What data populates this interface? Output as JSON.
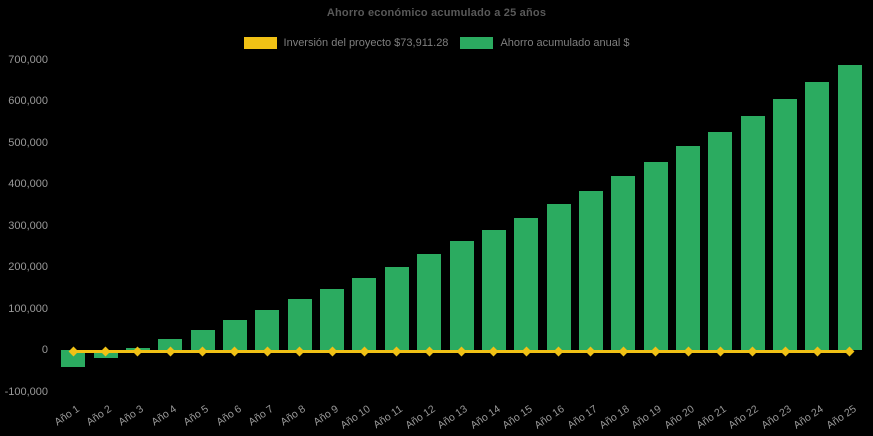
{
  "title": "Ahorro económico acumulado a 25 años",
  "legend": {
    "items": [
      {
        "id": "investment",
        "label": "Inversión del proyecto $73,911.28",
        "color": "#f0c115"
      },
      {
        "id": "savings",
        "label": "Ahorro acumulado anual $",
        "color": "#2bab60"
      }
    ]
  },
  "colors": {
    "background": "#000000",
    "title_text": "#595959",
    "legend_text": "#7f7f7f",
    "axis_text": "#999999",
    "bar": "#2bab60",
    "line": "#f0c115"
  },
  "chart_data": {
    "type": "bar",
    "title": "Ahorro económico acumulado a 25 años",
    "categories": [
      "Año 1",
      "Año 2",
      "Año 3",
      "Año 4",
      "Año 5",
      "Año 6",
      "Año 7",
      "Año 8",
      "Año 9",
      "Año 10",
      "Año 11",
      "Año 12",
      "Año 13",
      "Año 14",
      "Año 15",
      "Año 16",
      "Año 17",
      "Año 18",
      "Año 19",
      "Año 20",
      "Año 21",
      "Año 22",
      "Año 23",
      "Año 24",
      "Año 25"
    ],
    "series": [
      {
        "name": "Ahorro acumulado anual $",
        "type": "bar",
        "color": "#2bab60",
        "values": [
          -40000,
          -19000,
          6000,
          27000,
          48000,
          72000,
          96000,
          123000,
          147000,
          175000,
          201000,
          231000,
          263000,
          289000,
          319000,
          353000,
          384000,
          420000,
          454000,
          493000,
          526000,
          565000,
          606000,
          646000,
          687000
        ]
      },
      {
        "name": "Inversión del proyecto $73,911.28",
        "type": "line",
        "color": "#f0c115",
        "marker": "diamond",
        "values": [
          0,
          0,
          0,
          0,
          0,
          0,
          0,
          0,
          0,
          0,
          0,
          0,
          0,
          0,
          0,
          0,
          0,
          0,
          0,
          0,
          0,
          0,
          0,
          0,
          0
        ]
      }
    ],
    "xlabel": "",
    "ylabel": "",
    "ylim": [
      -100000,
      700000
    ],
    "ytick_values": [
      700000,
      600000,
      500000,
      400000,
      300000,
      200000,
      100000,
      0,
      -100000
    ],
    "ytick_labels": [
      "700,000",
      "600,000",
      "500,000",
      "400,000",
      "300,000",
      "200,000",
      "100,000",
      "0",
      "-100,000"
    ],
    "grid": false,
    "legend_position": "top-center",
    "background": "#000000"
  }
}
